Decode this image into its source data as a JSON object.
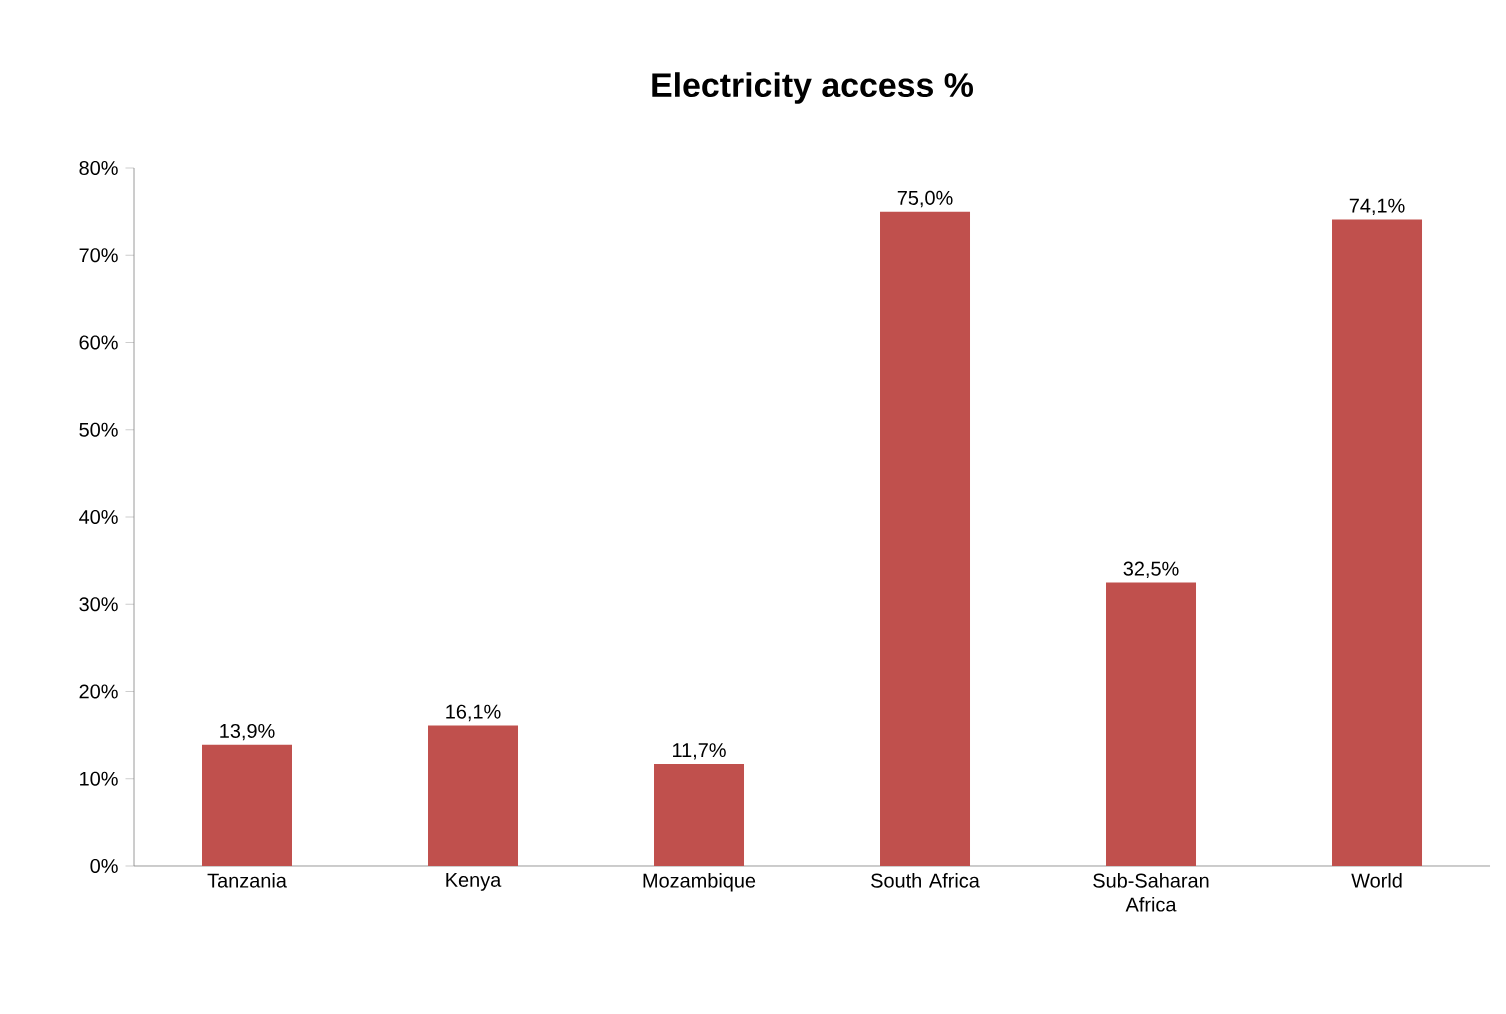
{
  "chart_data": {
    "type": "bar",
    "title": "Electricity access %",
    "categories": [
      "Tanzania",
      "Kenya",
      "Mozambique",
      "South Africa",
      "Sub-Saharan Africa",
      "World"
    ],
    "values": [
      13.9,
      16.1,
      11.7,
      75.0,
      32.5,
      74.1
    ],
    "value_labels": [
      "13,9%",
      "16,1%",
      "11,7%",
      "75,0%",
      "32,5%",
      "74,1%"
    ],
    "color": "#c0504d",
    "ylim": [
      0,
      80
    ],
    "yticks": [
      {
        "value": 0,
        "label": "0%"
      },
      {
        "value": 10,
        "label": "10%"
      },
      {
        "value": 20,
        "label": "20%"
      },
      {
        "value": 30,
        "label": "30%"
      },
      {
        "value": 40,
        "label": "40%"
      },
      {
        "value": 50,
        "label": "50%"
      },
      {
        "value": 60,
        "label": "60%"
      },
      {
        "value": 70,
        "label": "70%"
      },
      {
        "value": 80,
        "label": "80%"
      }
    ],
    "grid": false
  }
}
